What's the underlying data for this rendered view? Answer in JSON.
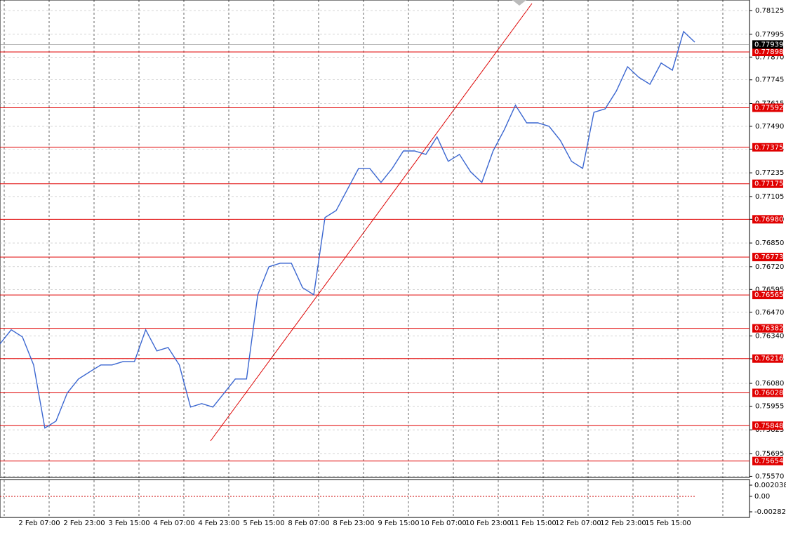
{
  "chart_data": {
    "type": "line",
    "series": [
      {
        "name": "Price",
        "color": "#3a66d0",
        "values": [
          0.76297,
          0.76374,
          0.76335,
          0.76181,
          0.75835,
          0.75873,
          0.76027,
          0.76104,
          0.76143,
          0.76181,
          0.76181,
          0.762,
          0.762,
          0.76374,
          0.76258,
          0.76277,
          0.76181,
          0.7595,
          0.75969,
          0.7595,
          0.76027,
          0.76104,
          0.76104,
          0.76566,
          0.7672,
          0.76739,
          0.76739,
          0.76605,
          0.76566,
          0.7699,
          0.77028,
          0.77144,
          0.77259,
          0.77259,
          0.77182,
          0.77259,
          0.77355,
          0.77355,
          0.77336,
          0.77432,
          0.77298,
          0.77336,
          0.7724,
          0.77182,
          0.77355,
          0.77471,
          0.77606,
          0.77509,
          0.77509,
          0.7749,
          0.77413,
          0.77298,
          0.77259,
          0.77567,
          0.77586,
          0.77683,
          0.77817,
          0.77759,
          0.77721,
          0.77837,
          0.77798,
          0.7801,
          0.77952
        ]
      }
    ],
    "ylim": [
      0.75564,
      0.78183
    ],
    "yticks": [
      0.78125,
      0.77995,
      {
        "value": 0.7787,
        "label": "0.77870"
      },
      0.77745,
      0.77615,
      {
        "value": 0.7749,
        "label": "0.77490"
      },
      0.77365,
      0.77235,
      0.77105,
      {
        "value": 0.7698,
        "label": "0.76980"
      },
      {
        "value": 0.7685,
        "label": "0.76850"
      },
      {
        "value": 0.7672,
        "label": "0.76720"
      },
      0.76595,
      {
        "value": 0.7647,
        "label": "0.76470"
      },
      {
        "value": 0.7634,
        "label": "0.76340"
      },
      0.76215,
      {
        "value": 0.7608,
        "label": "0.76080"
      },
      0.75955,
      0.75825,
      0.75695,
      {
        "value": 0.7557,
        "label": "0.75570"
      }
    ],
    "levels": [
      0.77898,
      0.77592,
      0.77375,
      0.77175,
      {
        "value": 0.7698,
        "label": "0.76980"
      },
      0.76773,
      0.76565,
      0.76382,
      0.76216,
      0.76028,
      0.75848,
      0.75654
    ],
    "current_price": 0.77939,
    "x_labels": [
      "2 Feb 07:00",
      "2 Feb 23:00",
      "3 Feb 15:00",
      "4 Feb 07:00",
      "4 Feb 23:00",
      "5 Feb 15:00",
      "8 Feb 07:00",
      "8 Feb 23:00",
      "9 Feb 15:00",
      "10 Feb 07:00",
      "10 Feb 23:00",
      "11 Feb 15:00",
      "12 Feb 07:00",
      "12 Feb 23:00",
      "15 Feb 15:00"
    ],
    "indicator_ylim": [
      -0.003845,
      0.003061
    ],
    "indicator_yticks": [
      0.002038,
      {
        "value": 0,
        "label": "0.00"
      },
      -0.002822
    ],
    "grid": true
  }
}
